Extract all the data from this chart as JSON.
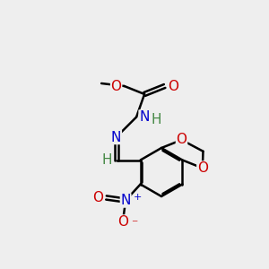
{
  "bg_color": "#eeeeee",
  "bond_color": "#000000",
  "bond_lw": 1.8,
  "atom_colors": {
    "O": "#cc0000",
    "N": "#0000cc",
    "N+": "#0000cc",
    "O-": "#cc0000",
    "H": "#448844",
    "C": "#000000"
  },
  "font_size": 11,
  "font_size_small": 10
}
